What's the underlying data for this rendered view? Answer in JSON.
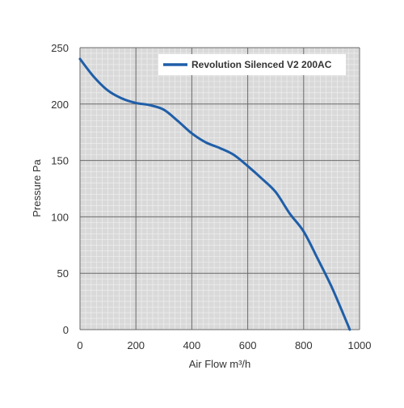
{
  "chart_data": {
    "type": "line",
    "title": "",
    "xlabel": "Air Flow m³/h",
    "ylabel": "Pressure Pa",
    "xlim": [
      0,
      1000
    ],
    "ylim": [
      0,
      250
    ],
    "x_ticks": [
      0,
      200,
      400,
      600,
      800,
      1000
    ],
    "y_ticks": [
      0,
      50,
      100,
      150,
      200,
      250
    ],
    "x_tick_labels": [
      "0",
      "200",
      "400",
      "600",
      "800",
      "1000"
    ],
    "y_tick_labels": [
      "0",
      "50",
      "100",
      "150",
      "200",
      "250"
    ],
    "grid": true,
    "minor_grid": true,
    "legend": {
      "position": "top-right"
    },
    "series": [
      {
        "name": "Revolution Silenced V2 200AC",
        "color": "#1f5ea8",
        "x": [
          0,
          50,
          100,
          150,
          200,
          250,
          300,
          350,
          400,
          450,
          500,
          550,
          600,
          650,
          700,
          750,
          800,
          850,
          900,
          950,
          965
        ],
        "y": [
          240,
          224,
          212,
          205,
          201,
          199,
          195,
          185,
          174,
          166,
          161,
          155,
          145,
          134,
          122,
          103,
          87,
          63,
          38,
          9,
          0
        ]
      }
    ]
  }
}
